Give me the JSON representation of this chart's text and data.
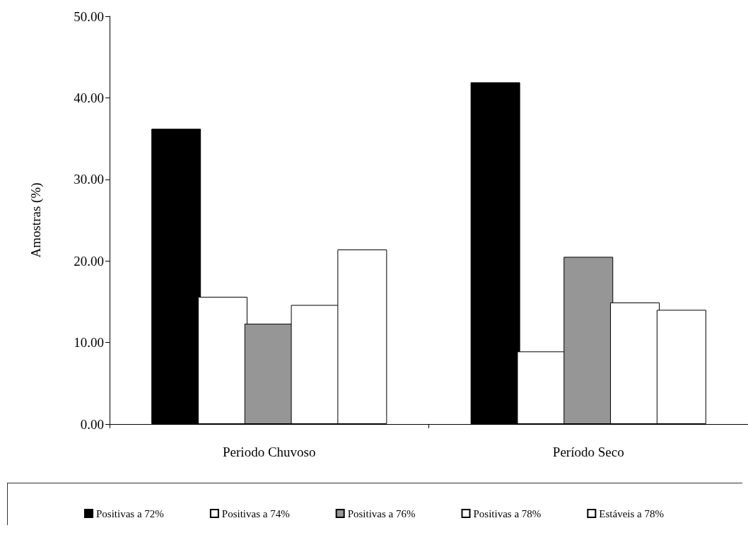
{
  "chart_data": {
    "type": "bar",
    "ylabel": "Amostras (%)",
    "categories": [
      "Periodo Chuvoso",
      "Período Seco"
    ],
    "series": [
      {
        "name": "Positivas a 72%",
        "color": "#000000",
        "values": [
          36.2,
          41.9
        ]
      },
      {
        "name": "Positivas a 74%",
        "color": "#ffffff",
        "values": [
          15.6,
          8.9
        ]
      },
      {
        "name": "Positivas a 76%",
        "color": "#969696",
        "values": [
          12.3,
          20.5
        ]
      },
      {
        "name": "Positivas a 78%",
        "color": "#ffffff",
        "values": [
          14.6,
          14.9
        ]
      },
      {
        "name": "Estáveis a 78%",
        "color": "#ffffff",
        "values": [
          21.4,
          14.0
        ]
      }
    ],
    "ylim": [
      0,
      50
    ],
    "yticks": [
      {
        "value": 0,
        "label": "0.00"
      },
      {
        "value": 10,
        "label": "10.00"
      },
      {
        "value": 20,
        "label": "20.00"
      },
      {
        "value": 30,
        "label": "30.00"
      },
      {
        "value": 40,
        "label": "40.00"
      },
      {
        "value": 50,
        "label": "50.00"
      }
    ],
    "grid": false,
    "legend": "bottom"
  }
}
